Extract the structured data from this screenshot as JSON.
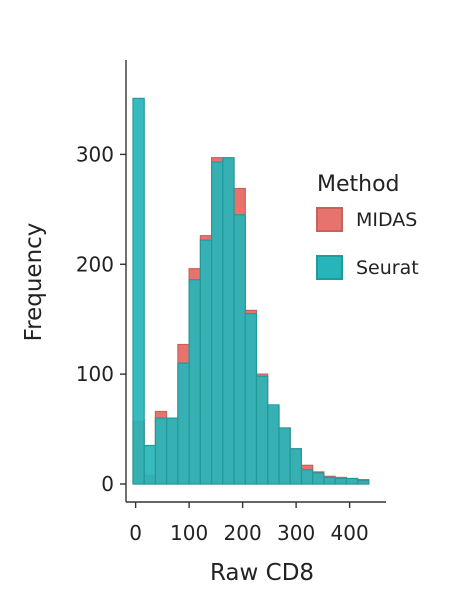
{
  "chart_data": {
    "type": "bar",
    "title": "",
    "xlabel": "Raw CD8",
    "ylabel": "Frequency",
    "xlim": [
      -18,
      468
    ],
    "ylim": [
      0,
      365
    ],
    "xticks": [
      0,
      100,
      200,
      300,
      400
    ],
    "yticks": [
      0,
      100,
      200,
      300
    ],
    "bin_width": 21,
    "bin_starts": [
      -5,
      16,
      37,
      58,
      79,
      100,
      121,
      142,
      163,
      184,
      205,
      226,
      247,
      268,
      289,
      310,
      331,
      352,
      373,
      394,
      415
    ],
    "legend": {
      "title": "Method",
      "position": "right"
    },
    "series": [
      {
        "name": "MIDAS",
        "color": "#E8736C",
        "values": [
          57,
          8,
          66,
          60,
          127,
          196,
          226,
          297,
          296,
          269,
          158,
          100,
          70,
          51,
          32,
          17,
          11,
          7,
          6,
          5,
          4
        ]
      },
      {
        "name": "Seurat",
        "color": "#26B5B8",
        "values": [
          351,
          35,
          60,
          60,
          110,
          186,
          222,
          293,
          297,
          245,
          155,
          98,
          72,
          51,
          32,
          13,
          10,
          6,
          5,
          5,
          3
        ]
      }
    ]
  }
}
